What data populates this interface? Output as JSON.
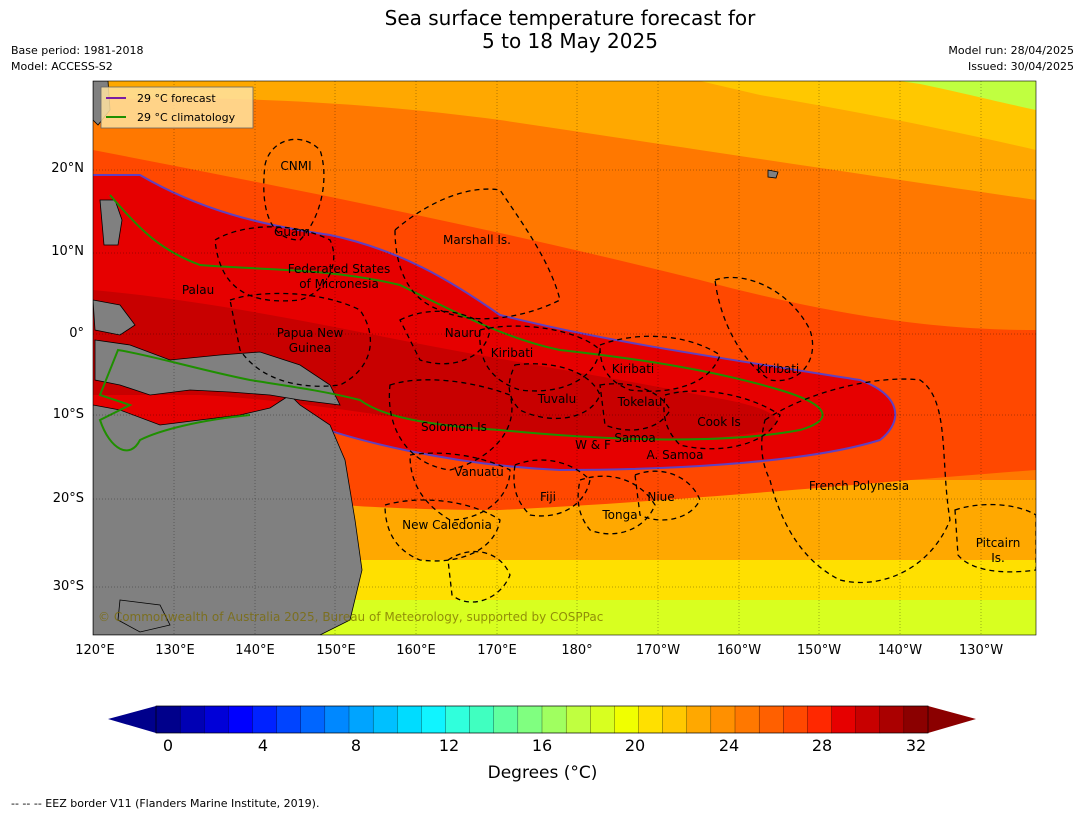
{
  "header": {
    "title_line1": "Sea surface temperature forecast for",
    "title_line2": "5 to 18 May 2025",
    "base_period": "Base period: 1981-2018",
    "model": "Model: ACCESS-S2",
    "model_run": "Model run: 28/04/2025",
    "issued": "Issued: 30/04/2025"
  },
  "map": {
    "lat_ticks": [
      "20°N",
      "10°N",
      "0°",
      "10°S",
      "20°S",
      "30°S"
    ],
    "lon_ticks": [
      "120°E",
      "130°E",
      "140°E",
      "150°E",
      "160°E",
      "170°E",
      "180°",
      "170°W",
      "160°W",
      "150°W",
      "140°W",
      "130°W"
    ],
    "legend": {
      "forecast": "29 °C  forecast",
      "climatology": "29 °C  climatology"
    },
    "region_labels": [
      "CNMI",
      "Guam",
      "Marshall Is.",
      "Federated States",
      "of Micronesia",
      "Palau",
      "Papua New",
      "Guinea",
      "Nauru",
      "Kiribati",
      "Kiribati",
      "Kiribati",
      "Tuvalu",
      "Tokelau",
      "Cook Is",
      "Solomon Is",
      "W & F",
      "Samoa",
      "A. Samoa",
      "Vanuatu",
      "Fiji",
      "Niue",
      "Tonga",
      "French Polynesia",
      "New Caledonia",
      "Pitcairn",
      "Is."
    ],
    "copyright": "© Commonwealth of Australia 2025, Bureau of Meteorology, supported by COSPPac"
  },
  "colorbar": {
    "ticks": [
      "0",
      "4",
      "8",
      "12",
      "16",
      "20",
      "24",
      "28",
      "32"
    ],
    "label": "Degrees (°C)",
    "colors": [
      "#00008b",
      "#0000b4",
      "#0000d8",
      "#0000ff",
      "#0022ff",
      "#0044ff",
      "#0066ff",
      "#0088ff",
      "#00a4ff",
      "#00c0ff",
      "#00dcff",
      "#10f4ff",
      "#30ffdc",
      "#40ffc0",
      "#60ffa0",
      "#80ff80",
      "#a0ff60",
      "#c0ff40",
      "#d8ff20",
      "#f0ff00",
      "#ffe000",
      "#ffc800",
      "#ffa800",
      "#ff9000",
      "#ff7800",
      "#ff6000",
      "#ff4800",
      "#ff2800",
      "#e60000",
      "#c80000",
      "#aa0000",
      "#8b0000"
    ],
    "under_color": "#00008b",
    "over_color": "#8b0000"
  },
  "footnote": "--  --  -- EEZ border V11 (Flanders Marine Institute, 2019)."
}
